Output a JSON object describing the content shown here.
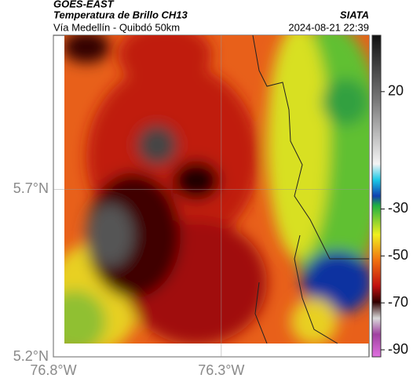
{
  "header": {
    "title": "GOES-EAST",
    "subtitle": "Temperatura de Brillo CH13",
    "region": "Vía Medellín - Quibdó 50km",
    "source": "SIATA",
    "timestamp": "2024-08-21 22:39"
  },
  "map": {
    "xlim": [
      -76.8,
      -75.86
    ],
    "ylim": [
      5.2,
      6.16
    ],
    "xticks": [
      {
        "value": -76.8,
        "label": "76.8°W"
      },
      {
        "value": -76.3,
        "label": "76.3°W"
      }
    ],
    "yticks": [
      {
        "value": 5.2,
        "label": "5.2°N"
      },
      {
        "value": 5.7,
        "label": "5.7°N"
      }
    ]
  },
  "colorbar": {
    "range": [
      -93,
      44
    ],
    "ticks": [
      20,
      -30,
      -50,
      -70,
      -90
    ]
  }
}
